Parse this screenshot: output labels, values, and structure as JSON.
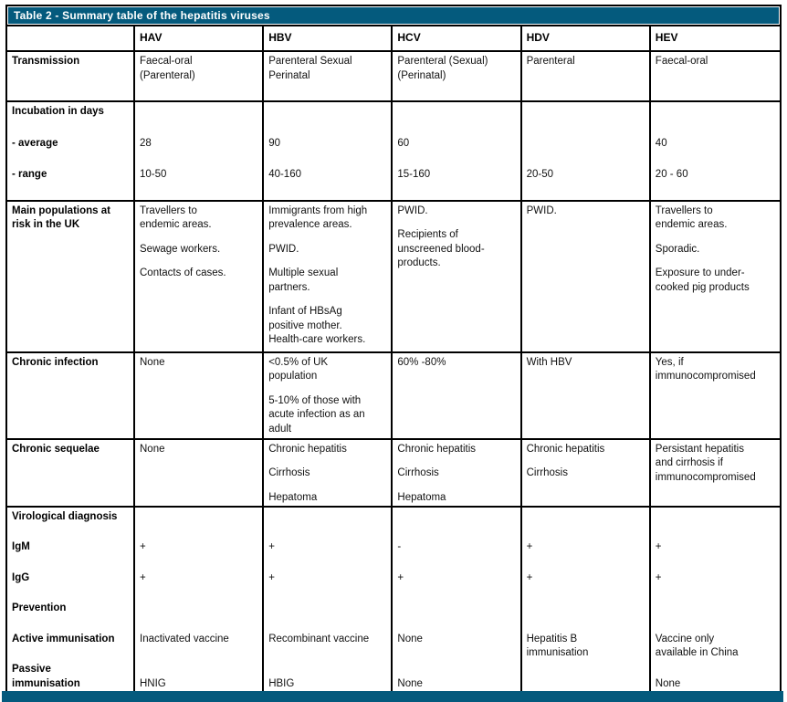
{
  "title": "Table 2 - Summary table of the hepatitis viruses",
  "colors": {
    "header_bar": "#045a7d",
    "header_text": "#ffffff",
    "border": "#000000"
  },
  "columns": [
    "",
    "HAV",
    "HBV",
    "HCV",
    "HDV",
    "HEV"
  ],
  "rows": [
    {
      "label": [
        "Transmission"
      ],
      "cells": [
        [
          "Faecal-oral\n(Parenteral)"
        ],
        [
          "Parenteral Sexual\nPerinatal"
        ],
        [
          "Parenteral (Sexual)\n(Perinatal)"
        ],
        [
          "Parenteral"
        ],
        [
          "Faecal-oral"
        ]
      ]
    },
    {
      "label": [
        "Incubation in days",
        "- average",
        "- range"
      ],
      "cells": [
        [
          "",
          "28",
          "10-50"
        ],
        [
          "",
          "90",
          "40-160"
        ],
        [
          "",
          "60",
          "15-160"
        ],
        [
          "",
          "",
          "20-50"
        ],
        [
          "",
          "40",
          "20 - 60"
        ]
      ]
    },
    {
      "label": [
        "Main populations at\nrisk in the UK"
      ],
      "cells": [
        [
          "Travellers to\nendemic areas.",
          "Sewage workers.",
          "Contacts of cases."
        ],
        [
          "Immigrants from high\nprevalence areas.",
          "PWID.",
          "Multiple sexual\npartners.",
          "Infant of HBsAg\npositive mother.\nHealth-care workers."
        ],
        [
          "PWID.",
          "Recipients of\nunscreened blood-\nproducts."
        ],
        [
          "PWID."
        ],
        [
          "Travellers to\nendemic areas.",
          "Sporadic.",
          "Exposure to under-\ncooked pig products"
        ]
      ]
    },
    {
      "label": [
        "Chronic infection"
      ],
      "cells": [
        [
          "None"
        ],
        [
          "<0.5% of UK\npopulation",
          "5-10% of those with\nacute infection as an\nadult"
        ],
        [
          "60% -80%"
        ],
        [
          "With HBV"
        ],
        [
          "Yes, if\nimmunocompromised"
        ]
      ]
    },
    {
      "label": [
        "Chronic sequelae"
      ],
      "cells": [
        [
          "None"
        ],
        [
          "Chronic hepatitis",
          "Cirrhosis",
          "Hepatoma"
        ],
        [
          "Chronic hepatitis",
          "Cirrhosis",
          "Hepatoma"
        ],
        [
          "Chronic hepatitis",
          "Cirrhosis"
        ],
        [
          "Persistant hepatitis\nand cirrhosis if\nimmunocompromised"
        ]
      ]
    },
    {
      "label": [
        "Virological diagnosis",
        "IgM",
        "IgG",
        "Prevention",
        "Active immunisation",
        "Passive\nimmunisation"
      ],
      "cells": [
        [
          "",
          "+",
          "+",
          "",
          "Inactivated vaccine\n ",
          "HNIG"
        ],
        [
          "",
          "+",
          "+",
          "",
          "Recombinant vaccine\n ",
          "HBIG"
        ],
        [
          "",
          "-",
          "+",
          "",
          "None\n ",
          "None"
        ],
        [
          "",
          "+",
          "+",
          "",
          "Hepatitis B\nimmunisation",
          ""
        ],
        [
          "",
          "+",
          "+",
          "",
          "Vaccine only\navailable in China",
          "None"
        ]
      ]
    }
  ]
}
